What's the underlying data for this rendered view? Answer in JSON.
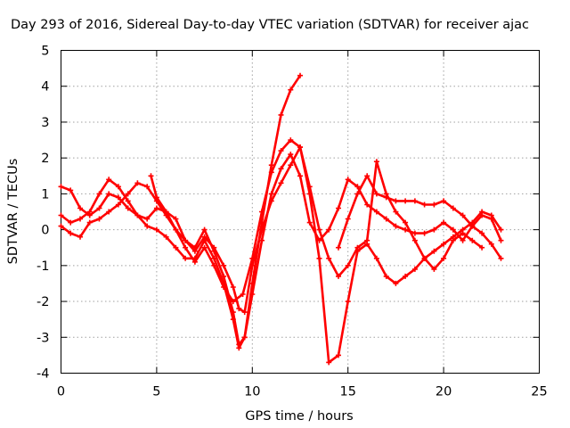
{
  "chart_data": {
    "type": "line",
    "title": "Day 293 of 2016, Sidereal Day-to-day VTEC variation (SDTVAR) for receiver ajac",
    "xlabel": "GPS time / hours",
    "ylabel": "SDTVAR / TECUs",
    "xlim": [
      0,
      25
    ],
    "ylim": [
      -4,
      5
    ],
    "x_ticks": [
      "0",
      "5",
      "10",
      "15",
      "20",
      "25"
    ],
    "y_ticks": [
      "-4",
      "-3",
      "-2",
      "-1",
      "0",
      "1",
      "2",
      "3",
      "4",
      "5"
    ],
    "grid": true,
    "marker": "plus",
    "color": "#ff0000",
    "series": [
      {
        "x": [
          0.0,
          0.5,
          1.0,
          1.5,
          2.0,
          2.5,
          3.0,
          3.5,
          4.0,
          4.5,
          5.0,
          5.5,
          6.0,
          6.5,
          7.0,
          7.5,
          8.0,
          8.5,
          9.0,
          9.3,
          9.6,
          10.0,
          10.5,
          11.0,
          11.5,
          12.0,
          12.5,
          13.0,
          13.5,
          14.0,
          14.5,
          15.0,
          15.5,
          16.0,
          16.5,
          17.0,
          17.5,
          18.0,
          18.5,
          19.0,
          19.5,
          20.0,
          20.5,
          21.0,
          21.5,
          22.0,
          22.5,
          23.0
        ],
        "y": [
          1.2,
          1.1,
          0.6,
          0.4,
          0.6,
          1.0,
          0.9,
          0.6,
          0.4,
          0.3,
          0.6,
          0.5,
          0.3,
          -0.3,
          -0.5,
          0.0,
          -0.6,
          -1.3,
          -2.3,
          -3.2,
          -3.0,
          -1.8,
          -0.3,
          1.0,
          1.7,
          2.1,
          1.5,
          0.2,
          -0.3,
          0.0,
          0.6,
          1.4,
          1.2,
          0.7,
          0.5,
          0.3,
          0.1,
          0.0,
          -0.1,
          -0.1,
          0.0,
          0.2,
          0.0,
          -0.3,
          0.1,
          0.4,
          0.3,
          -0.3
        ]
      },
      {
        "x": [
          0.0,
          0.5,
          1.0,
          1.5,
          2.0,
          2.5,
          3.0,
          3.5,
          4.0,
          4.5,
          5.0,
          5.5,
          6.0,
          6.5,
          7.0,
          7.5,
          8.0,
          8.5,
          9.0,
          9.3,
          9.6,
          10.0,
          10.5,
          11.0,
          11.5,
          12.0,
          12.5,
          13.0,
          13.5,
          14.0,
          14.5,
          15.0,
          15.5,
          16.0,
          16.5,
          17.0,
          17.5,
          18.0,
          18.5,
          19.0,
          19.5,
          20.0,
          20.5,
          21.0,
          21.5,
          22.0,
          22.5,
          23.0
        ],
        "y": [
          0.4,
          0.2,
          0.3,
          0.5,
          1.0,
          1.4,
          1.2,
          0.8,
          0.4,
          0.1,
          0.0,
          -0.2,
          -0.5,
          -0.8,
          -0.8,
          -0.3,
          -0.8,
          -1.5,
          -2.5,
          -3.3,
          -3.0,
          -1.5,
          0.2,
          1.8,
          3.2,
          3.9,
          4.3,
          null,
          null,
          null,
          -0.5,
          0.3,
          1.0,
          1.5,
          1.0,
          0.9,
          0.8,
          0.8,
          0.8,
          0.7,
          0.7,
          0.8,
          0.6,
          0.4,
          0.1,
          -0.1,
          -0.4,
          -0.8
        ]
      },
      {
        "x": [
          0.0,
          0.5,
          1.0,
          1.5,
          2.0,
          2.5,
          3.0,
          3.5,
          4.0,
          4.5,
          5.0,
          5.5,
          6.0,
          6.5,
          7.0,
          7.5,
          8.0,
          8.5,
          9.0,
          9.3,
          9.6,
          10.0,
          10.5,
          11.0,
          11.5,
          12.0,
          12.5,
          13.0,
          13.5,
          14.0,
          14.5,
          15.0,
          15.5,
          16.0,
          16.5,
          17.0,
          17.5,
          18.0,
          18.5,
          19.0,
          19.5,
          20.0,
          20.5,
          21.0,
          21.5,
          22.0,
          22.5,
          23.0
        ],
        "y": [
          0.1,
          -0.1,
          -0.2,
          0.2,
          0.3,
          0.5,
          0.7,
          1.0,
          1.3,
          1.2,
          0.8,
          0.4,
          0.0,
          -0.3,
          -0.6,
          -0.2,
          -0.5,
          -1.0,
          -1.6,
          -2.2,
          -2.3,
          -1.0,
          0.0,
          0.8,
          1.3,
          1.8,
          2.3,
          1.0,
          -0.8,
          -3.7,
          -3.5,
          -2.0,
          -0.6,
          -0.4,
          -0.8,
          -1.3,
          -1.5,
          -1.3,
          -1.1,
          -0.8,
          -0.6,
          -0.4,
          -0.2,
          0.0,
          0.2,
          0.5,
          0.4,
          0.0
        ]
      },
      {
        "x": [
          4.7,
          5.0,
          5.5,
          6.0,
          6.5,
          7.0,
          7.5,
          8.0,
          8.5,
          9.0,
          9.5,
          10.0,
          10.5,
          11.0,
          11.5,
          12.0,
          12.5,
          13.0,
          13.5,
          14.0,
          14.5,
          15.0,
          15.5,
          16.0,
          16.5,
          17.0,
          17.5,
          18.0,
          18.5,
          19.0,
          19.5,
          20.0,
          20.5,
          21.0,
          21.5,
          22.0
        ],
        "y": [
          1.5,
          0.9,
          0.5,
          0.0,
          -0.5,
          -0.9,
          -0.5,
          -1.0,
          -1.6,
          -2.0,
          -1.8,
          -0.8,
          0.5,
          1.6,
          2.2,
          2.5,
          2.3,
          1.2,
          0.0,
          -0.8,
          -1.3,
          -1.0,
          -0.5,
          -0.3,
          1.9,
          1.0,
          0.5,
          0.2,
          -0.3,
          -0.8,
          -1.1,
          -0.8,
          -0.3,
          -0.1,
          -0.3,
          -0.5
        ]
      }
    ]
  }
}
